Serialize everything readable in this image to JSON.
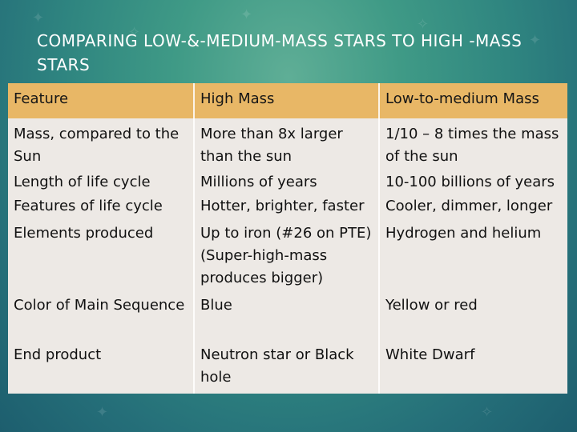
{
  "title": "COMPARING LOW-&-MEDIUM-MASS STARS TO HIGH -MASS STARS",
  "table": {
    "headers": [
      "Feature",
      "High Mass",
      "Low-to-medium Mass"
    ],
    "rows": [
      [
        "Mass, compared to the Sun",
        "More than 8x larger than the sun",
        "1/10 – 8 times the mass of the sun"
      ],
      [
        "Length of life cycle",
        "Millions of years",
        "10-100 billions of years"
      ],
      [
        "Features of life cycle",
        "Hotter, brighter, faster",
        "Cooler, dimmer, longer"
      ],
      [
        "Elements produced",
        "Up to iron (#26 on PTE) (Super-high-mass produces bigger)",
        "Hydrogen and helium"
      ],
      [
        "Color of Main Sequence",
        "Blue",
        "Yellow or red"
      ],
      [
        "End product",
        "Neutron star or Black hole",
        "White Dwarf"
      ]
    ]
  },
  "colors": {
    "header_bg": "#e8b766",
    "row_bg": "#ede9e5",
    "background": "#2f8580",
    "title_text": "#ffffff"
  }
}
